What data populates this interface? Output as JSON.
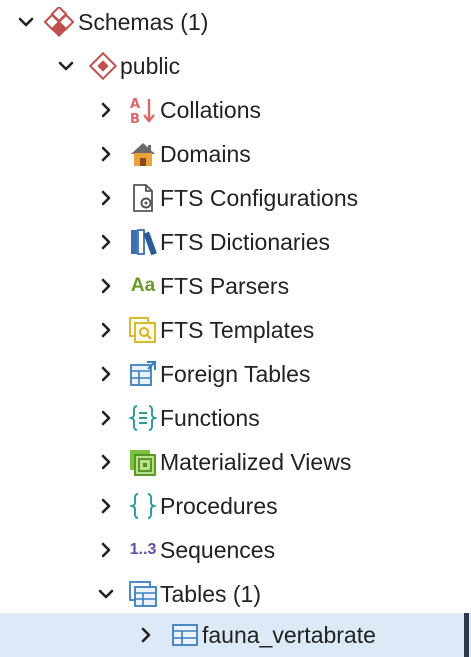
{
  "tree": {
    "schemas": {
      "label": "Schemas (1)",
      "expanded": true
    },
    "public": {
      "label": "public",
      "expanded": true
    },
    "children": [
      {
        "label": "Collations",
        "icon": "collation-icon"
      },
      {
        "label": "Domains",
        "icon": "domain-icon"
      },
      {
        "label": "FTS Configurations",
        "icon": "fts-configuration-icon"
      },
      {
        "label": "FTS Dictionaries",
        "icon": "fts-dictionary-icon"
      },
      {
        "label": "FTS Parsers",
        "icon": "fts-parser-icon",
        "glyph": "Aa"
      },
      {
        "label": "FTS Templates",
        "icon": "fts-template-icon"
      },
      {
        "label": "Foreign Tables",
        "icon": "foreign-table-icon"
      },
      {
        "label": "Functions",
        "icon": "function-icon"
      },
      {
        "label": "Materialized Views",
        "icon": "materialized-view-icon"
      },
      {
        "label": "Procedures",
        "icon": "procedure-icon"
      },
      {
        "label": "Sequences",
        "icon": "sequence-icon",
        "glyph": "1..3"
      },
      {
        "label": "Tables (1)",
        "icon": "table-icon",
        "expanded": true
      }
    ],
    "table": {
      "label": "fauna_vertabrate",
      "icon": "table-icon",
      "selected": true
    }
  },
  "colors": {
    "selection": "#dbeaf6",
    "schema_red": "#c0504d",
    "parser_green": "#6a9a28",
    "sequence_purple": "#6a4bb0",
    "table_blue": "#3a7fc1"
  }
}
